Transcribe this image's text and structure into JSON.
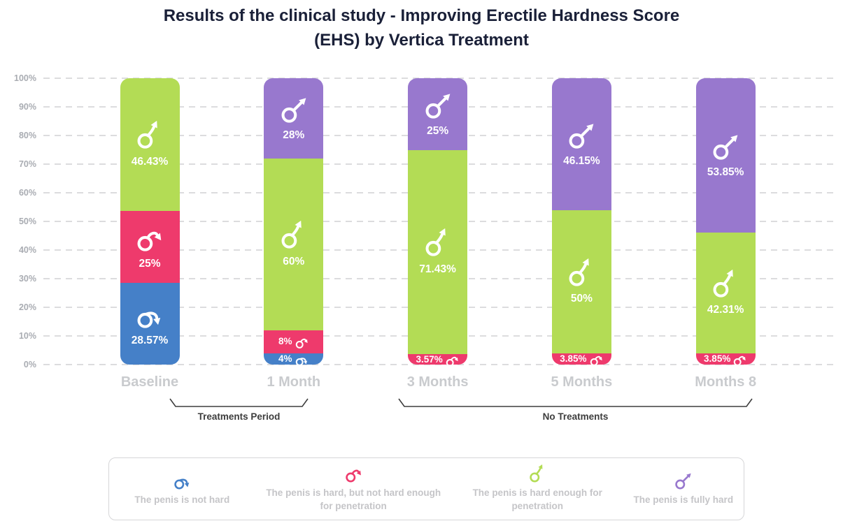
{
  "chart_data": {
    "type": "bar",
    "stacked": true,
    "title": "Results of the clinical study - Improving Erectile Hardness Score (EHS) by Vertica Treatment",
    "title_lines": [
      "Results of the clinical study - Improving Erectile Hardness Score",
      "(EHS) by Vertica Treatment"
    ],
    "categories": [
      "Baseline",
      "1 Month",
      "3 Months",
      "5 Months",
      "Months 8"
    ],
    "series": [
      {
        "id": "not-hard",
        "name": "The penis is not hard",
        "color": "#4580c8",
        "values": [
          28.57,
          4,
          0,
          0,
          0
        ],
        "value_labels": [
          "28.57%",
          "4%",
          "",
          "",
          ""
        ]
      },
      {
        "id": "hard-not-enough",
        "name": "The penis is hard, but not hard enough for penetration",
        "color": "#ee3a6c",
        "values": [
          25,
          8,
          3.57,
          3.85,
          3.85
        ],
        "value_labels": [
          "25%",
          "8%",
          "3.57%",
          "3.85%",
          "3.85%"
        ]
      },
      {
        "id": "hard-enough",
        "name": "The penis is hard enough for penetration",
        "color": "#b3dc55",
        "values": [
          46.43,
          60,
          71.43,
          50,
          42.31
        ],
        "value_labels": [
          "46.43%",
          "60%",
          "71.43%",
          "50%",
          "42.31%"
        ]
      },
      {
        "id": "fully-hard",
        "name": "The penis is fully hard",
        "color": "#9878ce",
        "values": [
          0,
          28,
          25,
          46.15,
          53.85
        ],
        "value_labels": [
          "",
          "28%",
          "25%",
          "46.15%",
          "53.85%"
        ]
      }
    ],
    "ylabel": "",
    "ylim": [
      0,
      100
    ],
    "y_ticks": [
      "100%",
      "90%",
      "80%",
      "70%",
      "60%",
      "50%",
      "40%",
      "30%",
      "20%",
      "10%",
      "0%"
    ],
    "grid": "horizontal-dashed",
    "legend_position": "bottom-box",
    "annotations": [
      {
        "label": "Treatments Period",
        "from_category": "Baseline",
        "to_category": "1 Month"
      },
      {
        "label": "No Treatments",
        "from_category": "3 Months",
        "to_category": "Months 8"
      }
    ]
  }
}
